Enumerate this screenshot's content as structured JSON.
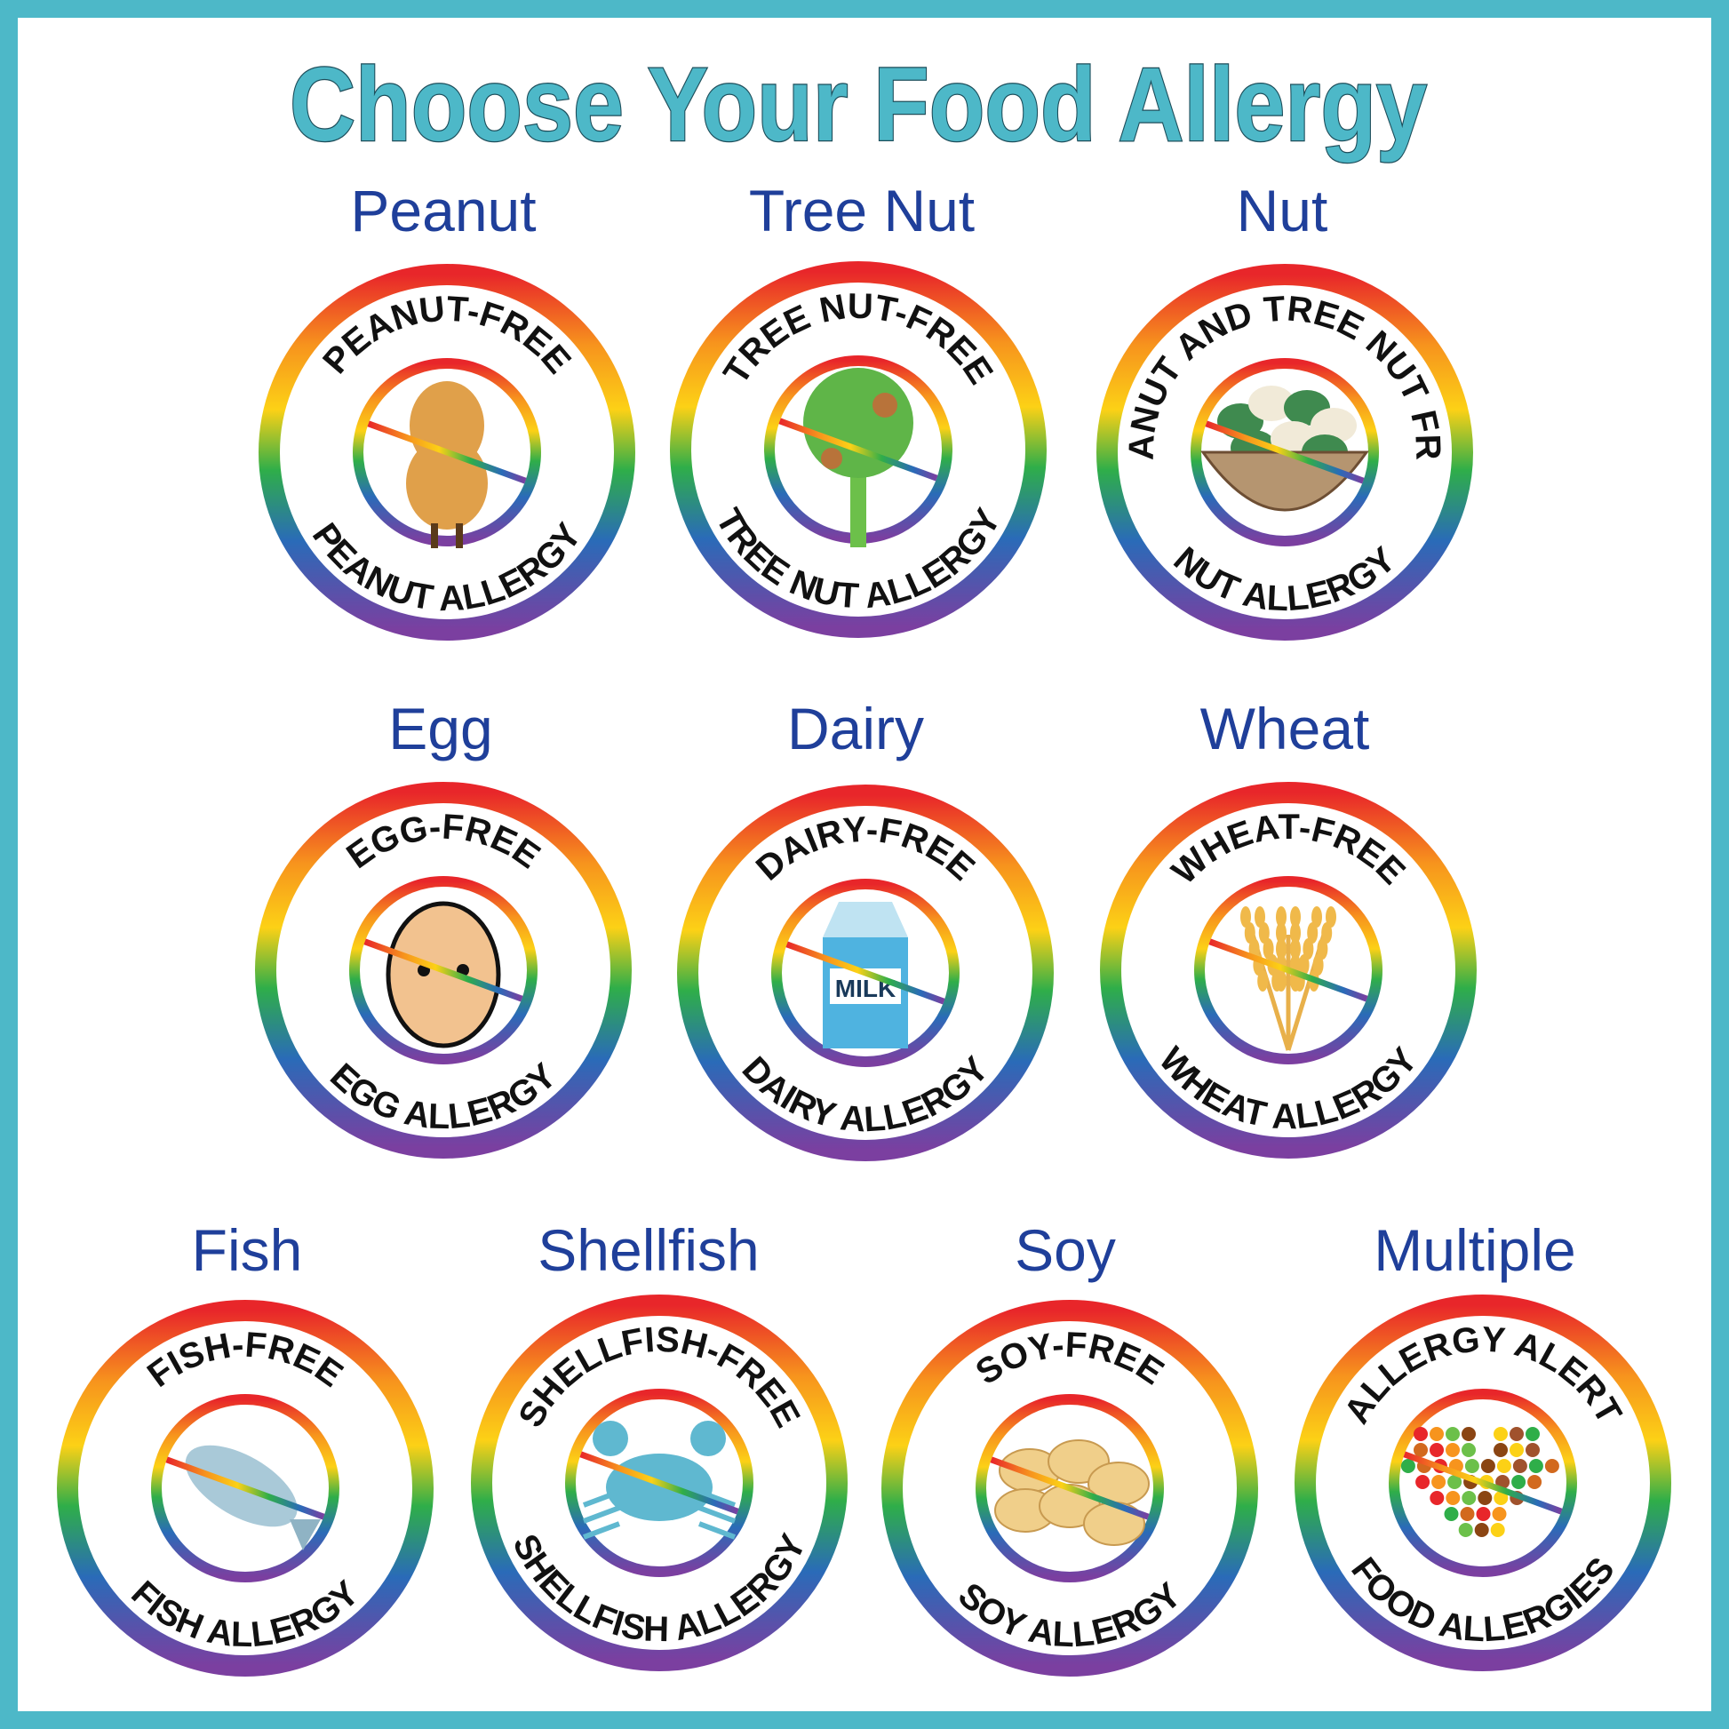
{
  "title": "Choose Your Food Allergy",
  "colors": {
    "border": "#4db8c8",
    "title": "#4db8c8",
    "label": "#1f3f9a",
    "rainbow": [
      "#e8262a",
      "#f7941d",
      "#fcd116",
      "#2fae49",
      "#2a6bb8",
      "#7b3fa0"
    ]
  },
  "badges": [
    {
      "label": "Peanut",
      "top": "PEANUT-FREE",
      "bottom": "PEANUT ALLERGY",
      "icon": "peanut-icon"
    },
    {
      "label": "Tree Nut",
      "top": "TREE NUT-FREE",
      "bottom": "TREE NUT ALLERGY",
      "icon": "tree-icon"
    },
    {
      "label": "Nut",
      "top": "PEANUT AND TREE NUT FREE",
      "bottom": "NUT ALLERGY",
      "icon": "nut-bowl-icon"
    },
    {
      "label": "Egg",
      "top": "EGG-FREE",
      "bottom": "EGG ALLERGY",
      "icon": "egg-icon"
    },
    {
      "label": "Dairy",
      "top": "DAIRY-FREE",
      "bottom": "DAIRY ALLERGY",
      "icon": "milk-carton-icon",
      "icon_text": "MILK"
    },
    {
      "label": "Wheat",
      "top": "WHEAT-FREE",
      "bottom": "WHEAT ALLERGY",
      "icon": "wheat-icon"
    },
    {
      "label": "Fish",
      "top": "FISH-FREE",
      "bottom": "FISH ALLERGY",
      "icon": "fish-icon"
    },
    {
      "label": "Shellfish",
      "top": "SHELLFISH-FREE",
      "bottom": "SHELLFISH ALLERGY",
      "icon": "crab-icon"
    },
    {
      "label": "Soy",
      "top": "SOY-FREE",
      "bottom": "SOY ALLERGY",
      "icon": "soybean-icon"
    },
    {
      "label": "Multiple",
      "top": "ALLERGY ALERT",
      "bottom": "FOOD ALLERGIES",
      "icon": "food-heart-icon"
    }
  ]
}
